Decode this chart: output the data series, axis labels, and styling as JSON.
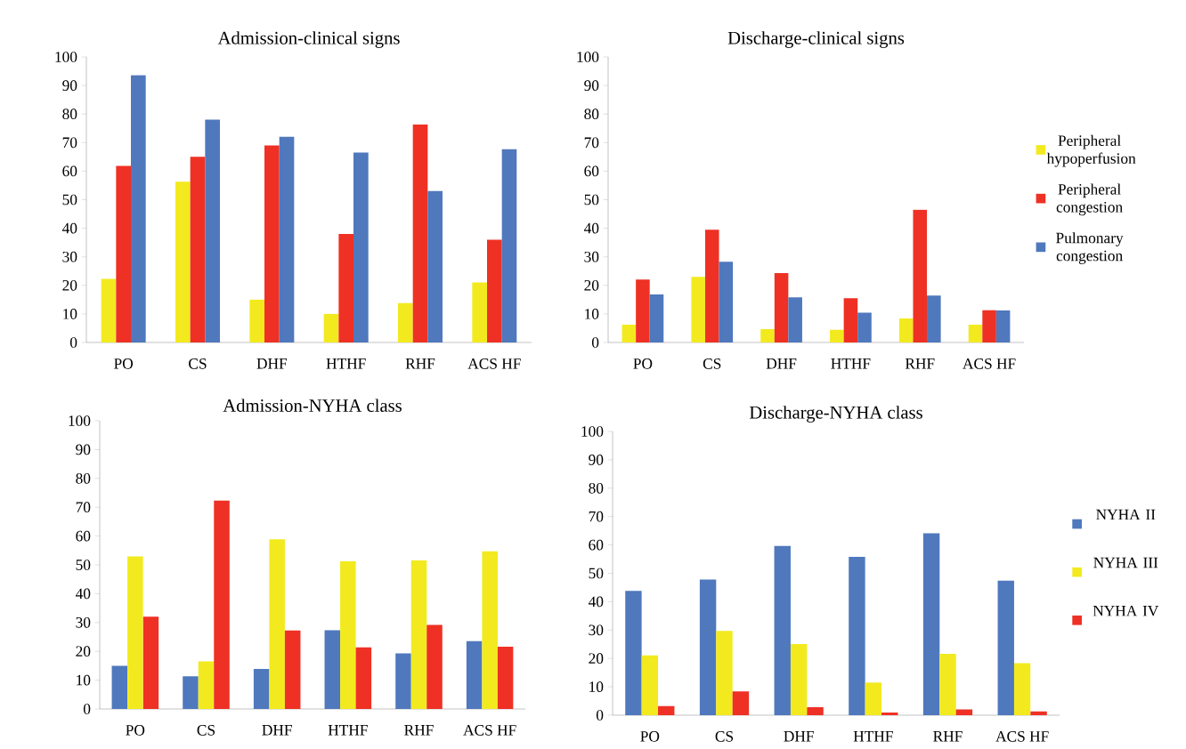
{
  "chart_data": [
    {
      "type": "bar",
      "title": "Admission-clinical signs",
      "categories": [
        "PO",
        "CS",
        "DHF",
        "HTHF",
        "RHF",
        "ACS HF"
      ],
      "ylim": [
        0,
        100
      ],
      "yticks": [
        0,
        10,
        20,
        30,
        40,
        50,
        60,
        70,
        80,
        90,
        100
      ],
      "series": [
        {
          "color": "#f2ea1e",
          "values": [
            22.3,
            56.3,
            15,
            10,
            13.8,
            21
          ]
        },
        {
          "color": "#ee3124",
          "values": [
            61.8,
            65,
            69,
            38,
            76.3,
            36
          ]
        },
        {
          "color": "#4f78bd",
          "values": [
            93.6,
            78,
            72,
            66.5,
            53,
            67.7
          ]
        }
      ]
    },
    {
      "type": "bar",
      "title": "Discharge-clinical signs",
      "categories": [
        "PO",
        "CS",
        "DHF",
        "HTHF",
        "RHF",
        "ACS HF"
      ],
      "ylim": [
        0,
        100
      ],
      "yticks": [
        0,
        10,
        20,
        30,
        40,
        50,
        60,
        70,
        80,
        90,
        100
      ],
      "legend": "right",
      "series": [
        {
          "name": "Peripheral hypoperfusion",
          "color": "#f2ea1e",
          "values": [
            6.2,
            23,
            4.7,
            4.4,
            8.4,
            6.2
          ]
        },
        {
          "name": "Peripheral congestion",
          "color": "#ee3124",
          "values": [
            22,
            39.5,
            24.3,
            15.5,
            46.5,
            11.3
          ]
        },
        {
          "name": "Pulmonary congestion",
          "color": "#4f78bd",
          "values": [
            16.8,
            28.3,
            15.8,
            10.4,
            16.4,
            11.2
          ]
        }
      ]
    },
    {
      "type": "bar",
      "title": "Admission-NYHA class",
      "categories": [
        "PO",
        "CS",
        "DHF",
        "HTHF",
        "RHF",
        "ACS HF"
      ],
      "ylim": [
        0,
        100
      ],
      "yticks": [
        0,
        10,
        20,
        30,
        40,
        50,
        60,
        70,
        80,
        90,
        100
      ],
      "series": [
        {
          "color": "#4f78bd",
          "values": [
            15,
            11.3,
            13.9,
            27.3,
            19.3,
            23.5
          ]
        },
        {
          "color": "#f2ea1e",
          "values": [
            52.9,
            16.5,
            58.9,
            51.2,
            51.5,
            54.7
          ]
        },
        {
          "color": "#ee3124",
          "values": [
            32,
            72.3,
            27.2,
            21.4,
            29.2,
            21.6
          ]
        }
      ]
    },
    {
      "type": "bar",
      "title": "Discharge-NYHA class",
      "categories": [
        "PO",
        "CS",
        "DHF",
        "HTHF",
        "RHF",
        "ACS HF"
      ],
      "ylim": [
        0,
        100
      ],
      "yticks": [
        0,
        10,
        20,
        30,
        40,
        50,
        60,
        70,
        80,
        90,
        100
      ],
      "legend": "right",
      "series": [
        {
          "name": "NYHA II",
          "color": "#4f78bd",
          "values": [
            43.8,
            47.8,
            59.6,
            55.8,
            64.1,
            47.4
          ]
        },
        {
          "name": "NYHA III",
          "color": "#f2ea1e",
          "values": [
            21.1,
            29.7,
            25.1,
            11.5,
            21.6,
            18.3
          ]
        },
        {
          "name": "NYHA IV",
          "color": "#ee3124",
          "values": [
            3.2,
            8.4,
            2.8,
            0.9,
            2,
            1.3
          ]
        }
      ]
    }
  ]
}
